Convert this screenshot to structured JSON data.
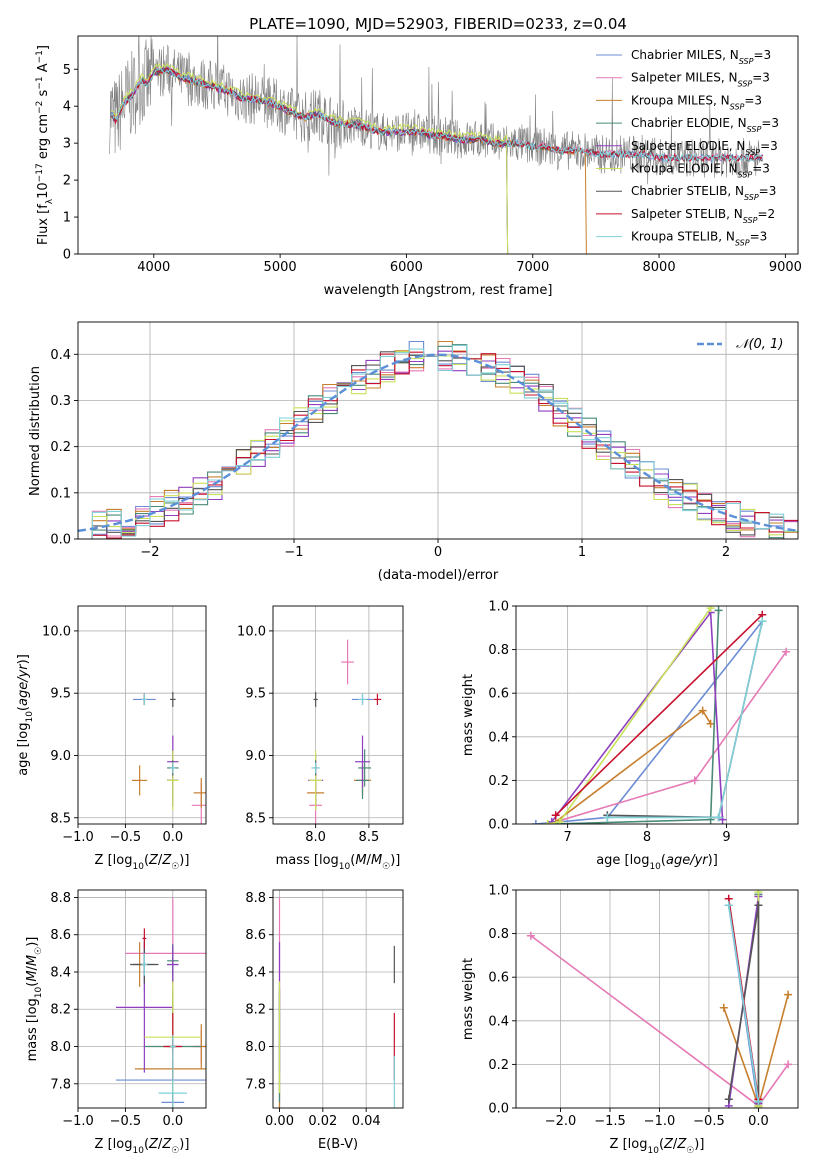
{
  "figure": {
    "title": "PLATE=1090, MJD=52903, FIBERID=0233, z=0.04"
  },
  "chart_data": [
    {
      "id": "spectrum",
      "type": "line",
      "xlabel": "wavelength [Angstrom, rest frame]",
      "ylabel": "Flux [f_λ 10^-17 erg cm^-2 s^-1 A^-1]",
      "xlim": [
        3400,
        9100
      ],
      "ylim": [
        0,
        5.9
      ],
      "xticks": [
        4000,
        5000,
        6000,
        7000,
        8000,
        9000
      ],
      "yticks": [
        0,
        1,
        2,
        3,
        4,
        5
      ],
      "grid": false,
      "legend_position": "top-right",
      "data_series": {
        "name": "",
        "color": "#808080",
        "x": [
          3650,
          3700,
          3750,
          3800,
          3850,
          3900,
          3950,
          4000,
          4100,
          4200,
          4300,
          4400,
          4500,
          4600,
          4700,
          4800,
          4900,
          5000,
          5100,
          5200,
          5300,
          5400,
          5500,
          5600,
          5700,
          5800,
          5900,
          6000,
          6100,
          6200,
          6300,
          6400,
          6500,
          6600,
          6700,
          6800,
          6900,
          7000,
          7100,
          7200,
          7300,
          7400,
          7500,
          7600,
          7700,
          7800,
          7900,
          8000,
          8100,
          8200,
          8300,
          8400,
          8500,
          8600,
          8700,
          8800
        ],
        "y": [
          3.9,
          3.6,
          4.0,
          4.2,
          4.4,
          4.7,
          4.6,
          4.9,
          5.0,
          4.8,
          4.7,
          4.6,
          4.5,
          4.4,
          4.2,
          4.2,
          4.1,
          4.0,
          3.8,
          3.7,
          3.8,
          3.6,
          3.5,
          3.5,
          3.4,
          3.3,
          3.3,
          3.3,
          3.3,
          3.2,
          3.2,
          3.1,
          3.1,
          3.1,
          3.0,
          3.0,
          3.0,
          2.9,
          2.9,
          2.8,
          2.8,
          2.8,
          2.7,
          2.7,
          2.7,
          2.7,
          2.7,
          2.6,
          2.6,
          2.6,
          2.6,
          2.6,
          2.6,
          2.6,
          2.6,
          2.6
        ],
        "noise_amplitude": 0.6
      },
      "series": [
        {
          "name": "Chabrier MILES, N_SSP=3",
          "color": "#6c8cd5",
          "offset": 0.0,
          "cutoff": null
        },
        {
          "name": "Salpeter MILES, N_SSP=3",
          "color": "#e67ab6",
          "offset": 0.02,
          "cutoff": null
        },
        {
          "name": "Kroupa MILES, N_SSP=3",
          "color": "#c77f2e",
          "offset": -0.02,
          "cutoff": 7420
        },
        {
          "name": "Chabrier ELODIE, N_SSP=3",
          "color": "#4a8a77",
          "offset": 0.01,
          "cutoff": 6800
        },
        {
          "name": "Salpeter ELODIE, N_SSP=3",
          "color": "#8f3fbf",
          "offset": -0.01,
          "cutoff": 6800
        },
        {
          "name": "Kroupa ELODIE, N_SSP=3",
          "color": "#c9e15a",
          "offset": 0.12,
          "cutoff": 6800
        },
        {
          "name": "Chabrier STELIB, N_SSP=3",
          "color": "#555555",
          "offset": 0.0,
          "cutoff": null
        },
        {
          "name": "Salpeter STELIB, N_SSP=2",
          "color": "#c8102e",
          "offset": 0.0,
          "cutoff": null
        },
        {
          "name": "Kroupa STELIB, N_SSP=3",
          "color": "#7fd0d8",
          "offset": 0.0,
          "cutoff": null
        }
      ],
      "legend_labels": [
        [
          "Chabrier MILES, N",
          "SSP",
          "=3"
        ],
        [
          "Salpeter MILES, N",
          "SSP",
          "=3"
        ],
        [
          "Kroupa MILES, N",
          "SSP",
          "=3"
        ],
        [
          "Chabrier ELODIE, N",
          "SSP",
          "=3"
        ],
        [
          "Salpeter ELODIE, N",
          "SSP",
          "=3"
        ],
        [
          "Kroupa ELODIE, N",
          "SSP",
          "=3"
        ],
        [
          "Chabrier STELIB, N",
          "SSP",
          "=3"
        ],
        [
          "Salpeter STELIB, N",
          "SSP",
          "=2"
        ],
        [
          "Kroupa STELIB, N",
          "SSP",
          "=3"
        ]
      ]
    },
    {
      "id": "residuals",
      "type": "step",
      "xlabel": "(data-model)/error",
      "ylabel": "Normed distribution",
      "xlim": [
        -2.5,
        2.5
      ],
      "ylim": [
        0,
        0.47
      ],
      "xticks": [
        -2,
        -1,
        0,
        1,
        2
      ],
      "yticks": [
        0.0,
        0.1,
        0.2,
        0.3,
        0.4
      ],
      "grid": true,
      "legend_position": "top-right",
      "reference_curve": {
        "name": "N(0,1)",
        "color": "#5b8fd8",
        "style": "dashed"
      },
      "bin_width": 0.1
    },
    {
      "id": "age-vs-Z",
      "type": "errorbar",
      "xlabel": "Z [log10(Z/Z☉)]",
      "ylabel": "age [log10(age/yr)]",
      "xlim": [
        -1.0,
        0.35
      ],
      "ylim": [
        8.45,
        10.2
      ],
      "xticks": [
        -1.0,
        -0.5,
        0.0
      ],
      "yticks": [
        8.5,
        9.0,
        9.5,
        10.0
      ],
      "grid": true
    },
    {
      "id": "age-vs-mass",
      "type": "errorbar",
      "xlabel": "mass [log10(M/M☉)]",
      "ylabel": "",
      "xlim": [
        7.6,
        8.82
      ],
      "ylim": [
        8.45,
        10.2
      ],
      "xticks": [
        8.0,
        8.5
      ],
      "yticks": [
        8.5,
        9.0,
        9.5,
        10.0
      ],
      "grid": true
    },
    {
      "id": "weight-vs-age",
      "type": "line",
      "xlabel": "age [log10(age/yr)]",
      "ylabel": "mass weight",
      "xlim": [
        6.35,
        9.9
      ],
      "ylim": [
        0,
        1.0
      ],
      "xticks": [
        7,
        8,
        9
      ],
      "yticks": [
        0.0,
        0.2,
        0.4,
        0.6,
        0.8,
        1.0
      ],
      "grid": true
    },
    {
      "id": "mass-vs-Z",
      "type": "errorbar",
      "xlabel": "Z [log10(Z/Z☉)]",
      "ylabel": "mass [log10(M/M☉)]",
      "xlim": [
        -1.0,
        0.35
      ],
      "ylim": [
        7.67,
        8.84
      ],
      "xticks": [
        -1.0,
        -0.5,
        0.0
      ],
      "yticks": [
        7.8,
        8.0,
        8.2,
        8.4,
        8.6,
        8.8
      ],
      "grid": true
    },
    {
      "id": "mass-vs-ebv",
      "type": "errorbar",
      "xlabel": "E(B-V)",
      "ylabel": "",
      "xlim": [
        -0.003,
        0.057
      ],
      "ylim": [
        7.67,
        8.84
      ],
      "xticks": [
        0.0,
        0.02,
        0.04
      ],
      "yticks": [
        7.8,
        8.0,
        8.2,
        8.4,
        8.6,
        8.8
      ],
      "grid": true
    },
    {
      "id": "weight-vs-Z",
      "type": "line",
      "xlabel": "Z [log10(Z/Z☉)]",
      "ylabel": "mass weight",
      "xlim": [
        -2.45,
        0.4
      ],
      "ylim": [
        0,
        1.0
      ],
      "xticks": [
        -2.0,
        -1.5,
        -1.0,
        -0.5,
        0.0
      ],
      "yticks": [
        0.0,
        0.2,
        0.4,
        0.6,
        0.8,
        1.0
      ],
      "grid": true
    }
  ],
  "pop_series": [
    {
      "color": "#6c8cd5",
      "age": [
        6.6,
        7.5,
        9.45
      ],
      "Z": [
        0.0,
        0.0,
        -0.3
      ],
      "mass": [
        7.82,
        7.7,
        8.44
      ],
      "weight": [
        0.0,
        0.03,
        0.93
      ],
      "ebv": 0.0,
      "Zerr": 0.6,
      "ageerr": 0.15,
      "masserr": 0.5
    },
    {
      "color": "#e67ab6",
      "age": [
        6.85,
        8.6,
        9.75
      ],
      "Z": [
        0.0,
        0.3,
        -2.3
      ],
      "mass": [
        8.5,
        8.0,
        8.3
      ],
      "weight": [
        0.01,
        0.2,
        0.79
      ],
      "ebv": 0.0,
      "Zerr": 0.5,
      "ageerr": 0.6,
      "masserr": 0.3
    },
    {
      "color": "#c77f2e",
      "age": [
        6.85,
        8.7,
        8.8
      ],
      "Z": [
        0.0,
        0.3,
        -0.35
      ],
      "mass": [
        7.88,
        8.0,
        8.44
      ],
      "weight": [
        0.01,
        0.52,
        0.46
      ],
      "ebv": 0.0,
      "Zerr": 0.4,
      "ageerr": 0.4,
      "masserr": 0.4
    },
    {
      "color": "#4a8a77",
      "age": [
        6.8,
        8.8,
        8.9
      ],
      "Z": [
        0.0,
        0.0,
        0.0
      ],
      "mass": [
        8.0,
        8.44,
        8.46
      ],
      "weight": [
        0.0,
        0.02,
        0.98
      ],
      "ebv": 0.0,
      "Zerr": 0.3,
      "ageerr": 0.5,
      "masserr": 0.3
    },
    {
      "color": "#8f3fbf",
      "age": [
        6.8,
        8.8,
        8.95
      ],
      "Z": [
        -0.3,
        0.0,
        0.0
      ],
      "mass": [
        8.21,
        8.0,
        8.44
      ],
      "weight": [
        0.01,
        0.97,
        0.02
      ],
      "ebv": 0.0,
      "Zerr": 0.3,
      "ageerr": 0.7,
      "masserr": 0.35
    },
    {
      "color": "#c9e15a",
      "age": [
        6.75,
        8.8,
        6.9
      ],
      "Z": [
        0.0,
        0.0,
        0.0
      ],
      "mass": [
        8.05,
        8.0,
        8.0
      ],
      "weight": [
        0.0,
        0.99,
        0.01
      ],
      "ebv": 0.0,
      "Zerr": 0.3,
      "ageerr": 0.8,
      "masserr": 0.3
    },
    {
      "color": "#555555",
      "age": [
        7.5,
        9.45,
        8.9
      ],
      "Z": [
        -0.3,
        0.0,
        0.0
      ],
      "mass": [
        8.44,
        8.0,
        8.0
      ],
      "weight": [
        0.04,
        0.93,
        0.03
      ],
      "ebv": 0.053,
      "Zerr": 0.15,
      "ageerr": 0.2,
      "masserr": 0.1
    },
    {
      "color": "#c8102e",
      "age": [
        6.85,
        9.45
      ],
      "Z": [
        0.0,
        -0.3
      ],
      "mass": [
        8.0,
        8.58
      ],
      "weight": [
        0.04,
        0.96
      ],
      "ebv": 0.053,
      "Zerr": 0.1,
      "ageerr": 0.15,
      "masserr": 0.18
    },
    {
      "color": "#7fd0d8",
      "age": [
        7.5,
        8.9,
        9.45
      ],
      "Z": [
        0.0,
        0.0,
        -0.3
      ],
      "mass": [
        7.75,
        8.0,
        8.44
      ],
      "weight": [
        0.03,
        0.03,
        0.93
      ],
      "ebv": 0.053,
      "Zerr": 0.15,
      "ageerr": 0.15,
      "masserr": 0.2
    }
  ]
}
